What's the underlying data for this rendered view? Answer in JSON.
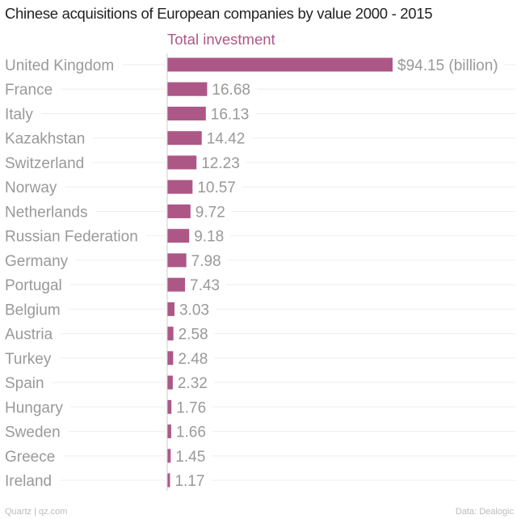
{
  "chart_data": {
    "type": "bar",
    "orientation": "horizontal",
    "title": "Chinese acquisitions of European companies by value 2000 - 2015",
    "series": [
      {
        "name": "Total investment",
        "color": "#ad5787",
        "values": [
          94.15,
          16.68,
          16.13,
          14.42,
          12.23,
          10.57,
          9.72,
          9.18,
          7.98,
          7.43,
          3.03,
          2.58,
          2.48,
          2.32,
          1.76,
          1.66,
          1.45,
          1.17
        ]
      }
    ],
    "categories": [
      "United Kingdom",
      "France",
      "Italy",
      "Kazakhstan",
      "Switzerland",
      "Norway",
      "Netherlands",
      "Russian Federation",
      "Germany",
      "Portugal",
      "Belgium",
      "Austria",
      "Turkey",
      "Spain",
      "Hungary",
      "Sweden",
      "Greece",
      "Ireland"
    ],
    "value_labels": [
      "$94.15 (billion)",
      "16.68",
      "16.13",
      "14.42",
      "12.23",
      "10.57",
      "9.72",
      "9.18",
      "7.98",
      "7.43",
      "3.03",
      "2.58",
      "2.48",
      "2.32",
      "1.76",
      "1.66",
      "1.45",
      "1.17"
    ],
    "xlim": [
      0,
      100
    ],
    "grid": true
  },
  "footer": {
    "source_left": "Quartz | qz.com",
    "source_right": "Data: Dealogic"
  }
}
